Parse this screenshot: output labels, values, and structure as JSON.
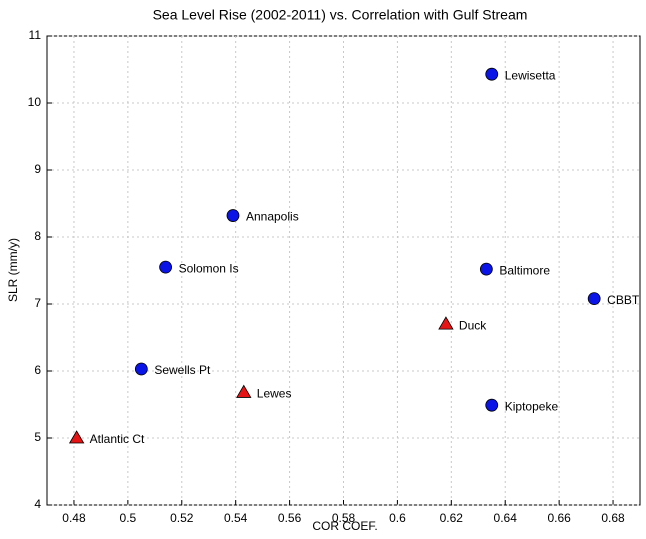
{
  "chart_data": {
    "type": "scatter",
    "title": "Sea Level Rise (2002-2011) vs. Correlation with Gulf Stream",
    "x_label": "COR COEF.",
    "y_label": "SLR (mm/y)",
    "xlim": [
      0.47,
      0.69
    ],
    "xticks": [
      0.48,
      0.5,
      0.52,
      0.54,
      0.56,
      0.58,
      0.6,
      0.62,
      0.64,
      0.66,
      0.68
    ],
    "ylim": [
      4,
      11
    ],
    "yticks": [
      4,
      5,
      6,
      7,
      8,
      9,
      10,
      11
    ],
    "grid": true,
    "series": [
      {
        "color": "#0a14e6",
        "marker": "circle",
        "x": [
          0.635,
          0.539,
          0.514,
          0.633,
          0.673,
          0.505,
          0.635
        ],
        "y": [
          10.43,
          8.32,
          7.55,
          7.52,
          7.08,
          6.03,
          5.49
        ],
        "labels": [
          "Lewisetta",
          "Annapolis",
          "Solomon Is",
          "Baltimore",
          "CBBT",
          "Sewells Pt",
          "Kiptopeke"
        ]
      },
      {
        "color": "#e61414",
        "marker": "triangle",
        "x": [
          0.618,
          0.543,
          0.481
        ],
        "y": [
          6.7,
          5.68,
          5.0
        ],
        "labels": [
          "Duck",
          "Lewes",
          "Atlantic Ct"
        ]
      }
    ]
  }
}
